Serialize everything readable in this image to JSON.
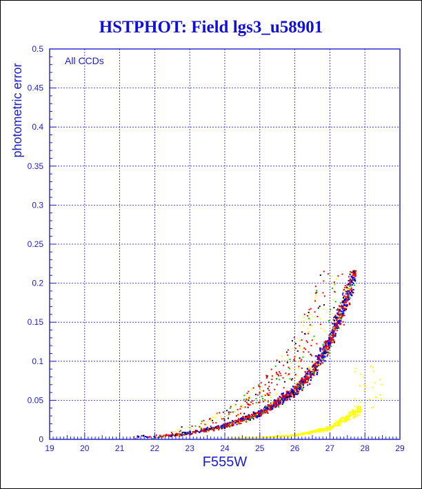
{
  "chart_data": {
    "type": "scatter",
    "title": "HSTPHOT: Field lgs3_u58901",
    "xlabel": "F555W",
    "ylabel": "photometric error",
    "annotation": "All CCDs",
    "xlim": [
      19,
      29
    ],
    "ylim": [
      0,
      0.5
    ],
    "x_ticks": [
      "19",
      "20",
      "21",
      "22",
      "23",
      "24",
      "25",
      "26",
      "27",
      "28",
      "29"
    ],
    "y_ticks": [
      "0",
      "0.05",
      "0.1",
      "0.15",
      "0.2",
      "0.25",
      "0.3",
      "0.35",
      "0.4",
      "0.45",
      "0.5"
    ],
    "grid": true,
    "series_colors": [
      "#ff0000",
      "#0000ff",
      "#00c800",
      "#ffff00",
      "#000000"
    ],
    "main_band": {
      "x_range": [
        21.3,
        27.75
      ],
      "error_cap": 0.216,
      "model_points": [
        [
          22.0,
          0.003
        ],
        [
          23.0,
          0.008
        ],
        [
          24.0,
          0.017
        ],
        [
          25.0,
          0.033
        ],
        [
          26.0,
          0.062
        ],
        [
          26.5,
          0.087
        ],
        [
          27.0,
          0.125
        ],
        [
          27.5,
          0.186
        ],
        [
          27.7,
          0.216
        ]
      ]
    },
    "yellow_sequence": {
      "x_range": [
        24.0,
        27.9
      ],
      "model_points": [
        [
          24.0,
          0.001
        ],
        [
          25.0,
          0.002
        ],
        [
          26.0,
          0.005
        ],
        [
          27.0,
          0.014
        ],
        [
          27.9,
          0.04
        ]
      ]
    }
  }
}
